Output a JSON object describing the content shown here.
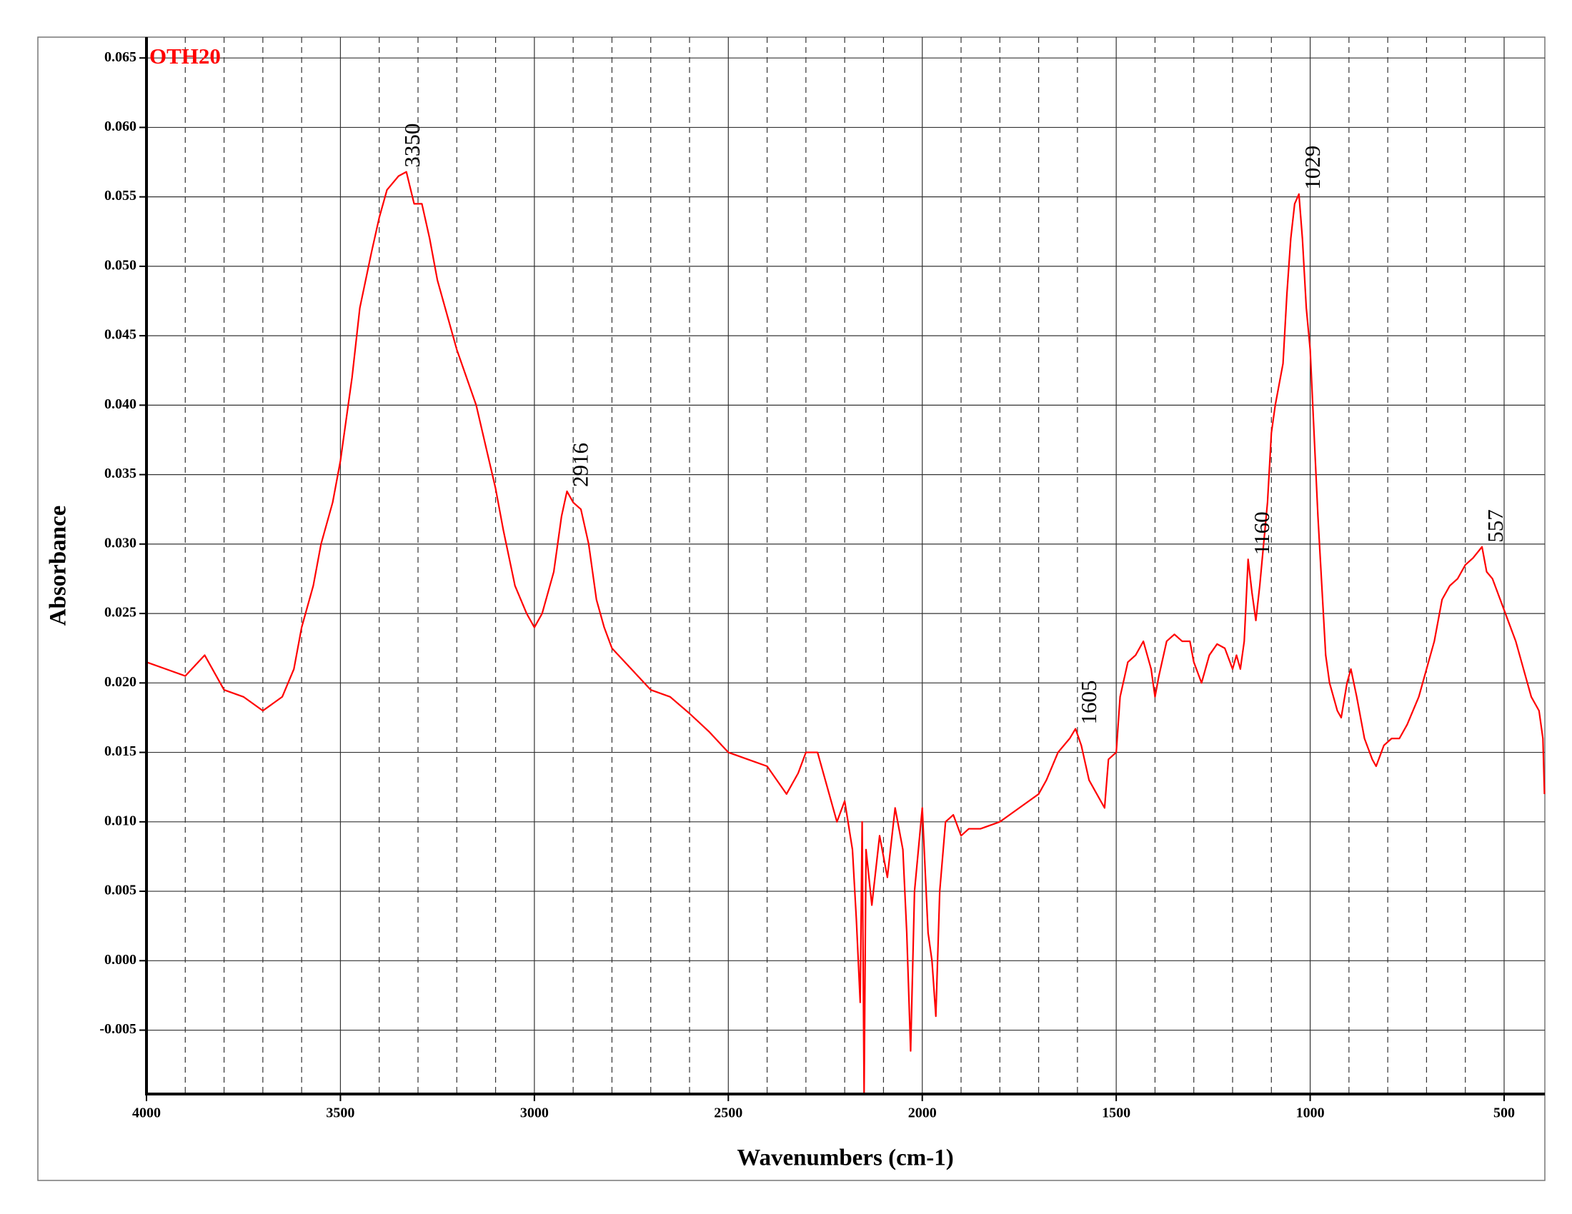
{
  "chart_data": {
    "type": "line",
    "xlabel": "Wavenumbers (cm-1)",
    "ylabel": "Absorbance",
    "xlim": [
      4000,
      395
    ],
    "ylim": [
      -0.0096,
      0.0665
    ],
    "xticks": [
      4000,
      3500,
      3000,
      2500,
      2000,
      1500,
      1000,
      500
    ],
    "xminorgrid": [
      3900,
      3800,
      3700,
      3600,
      3400,
      3300,
      3200,
      3100,
      2900,
      2800,
      2700,
      2600,
      2400,
      2300,
      2200,
      2100,
      1900,
      1800,
      1700,
      1600,
      1400,
      1300,
      1200,
      1100,
      900,
      800,
      700,
      600
    ],
    "yticks": [
      {
        "value": 0.065,
        "label": "0.065"
      },
      {
        "value": 0.06,
        "label": "0.060"
      },
      {
        "value": 0.055,
        "label": "0.055"
      },
      {
        "value": 0.05,
        "label": "0.050"
      },
      {
        "value": 0.045,
        "label": "0.045"
      },
      {
        "value": 0.04,
        "label": "0.040"
      },
      {
        "value": 0.035,
        "label": "0.035"
      },
      {
        "value": 0.03,
        "label": "0.030"
      },
      {
        "value": 0.025,
        "label": "0.025"
      },
      {
        "value": 0.02,
        "label": "0.020"
      },
      {
        "value": 0.015,
        "label": "0.015"
      },
      {
        "value": 0.01,
        "label": "0.010"
      },
      {
        "value": 0.005,
        "label": "0.005"
      },
      {
        "value": 0,
        "label": "0.000"
      },
      {
        "value": -0.005,
        "label": "-0.005"
      }
    ],
    "grid": true,
    "legend": "top-left",
    "series": [
      {
        "name": "OTH20",
        "color": "#ff0000",
        "x": [
          4000,
          3950,
          3900,
          3850,
          3800,
          3750,
          3700,
          3650,
          3620,
          3600,
          3570,
          3550,
          3520,
          3500,
          3470,
          3450,
          3420,
          3400,
          3380,
          3350,
          3330,
          3310,
          3290,
          3270,
          3250,
          3220,
          3200,
          3150,
          3100,
          3080,
          3050,
          3020,
          3000,
          2980,
          2950,
          2930,
          2916,
          2900,
          2880,
          2860,
          2840,
          2820,
          2800,
          2750,
          2700,
          2650,
          2600,
          2550,
          2500,
          2450,
          2400,
          2350,
          2320,
          2300,
          2270,
          2250,
          2220,
          2200,
          2180,
          2170,
          2160,
          2155,
          2150,
          2145,
          2130,
          2110,
          2090,
          2070,
          2050,
          2040,
          2030,
          2020,
          2000,
          1985,
          1975,
          1965,
          1955,
          1940,
          1920,
          1900,
          1880,
          1850,
          1800,
          1750,
          1700,
          1680,
          1650,
          1620,
          1605,
          1590,
          1570,
          1550,
          1530,
          1520,
          1500,
          1490,
          1470,
          1450,
          1430,
          1410,
          1400,
          1390,
          1370,
          1350,
          1330,
          1310,
          1300,
          1280,
          1260,
          1240,
          1220,
          1200,
          1190,
          1180,
          1170,
          1160,
          1150,
          1140,
          1130,
          1110,
          1100,
          1090,
          1070,
          1060,
          1050,
          1040,
          1029,
          1020,
          1010,
          1000,
          990,
          980,
          970,
          960,
          950,
          930,
          920,
          905,
          895,
          880,
          860,
          840,
          830,
          810,
          790,
          770,
          750,
          720,
          700,
          680,
          660,
          640,
          620,
          600,
          580,
          557,
          545,
          530,
          510,
          490,
          470,
          450,
          430,
          410,
          400,
          396
        ],
        "values": [
          0.0215,
          0.021,
          0.0205,
          0.022,
          0.0195,
          0.019,
          0.018,
          0.019,
          0.021,
          0.024,
          0.027,
          0.03,
          0.033,
          0.036,
          0.042,
          0.047,
          0.051,
          0.0535,
          0.0555,
          0.0565,
          0.0568,
          0.0545,
          0.0545,
          0.052,
          0.049,
          0.046,
          0.044,
          0.04,
          0.034,
          0.031,
          0.027,
          0.025,
          0.024,
          0.025,
          0.028,
          0.032,
          0.0338,
          0.033,
          0.0325,
          0.03,
          0.026,
          0.024,
          0.0225,
          0.021,
          0.0195,
          0.019,
          0.0178,
          0.0165,
          0.015,
          0.0145,
          0.014,
          0.012,
          0.0135,
          0.015,
          0.015,
          0.013,
          0.01,
          0.0115,
          0.008,
          0.003,
          -0.003,
          0.01,
          -0.0096,
          0.008,
          0.004,
          0.009,
          0.006,
          0.011,
          0.008,
          0.002,
          -0.0065,
          0.005,
          0.011,
          0.002,
          0,
          -0.004,
          0.005,
          0.01,
          0.0105,
          0.009,
          0.0095,
          0.0095,
          0.01,
          0.011,
          0.012,
          0.013,
          0.015,
          0.016,
          0.0167,
          0.0155,
          0.013,
          0.012,
          0.011,
          0.0145,
          0.015,
          0.019,
          0.0215,
          0.022,
          0.023,
          0.021,
          0.019,
          0.0205,
          0.023,
          0.0235,
          0.023,
          0.023,
          0.0215,
          0.02,
          0.022,
          0.0228,
          0.0225,
          0.021,
          0.022,
          0.021,
          0.023,
          0.0289,
          0.0265,
          0.0245,
          0.027,
          0.033,
          0.038,
          0.04,
          0.043,
          0.048,
          0.052,
          0.0545,
          0.0552,
          0.052,
          0.047,
          0.044,
          0.038,
          0.032,
          0.027,
          0.022,
          0.02,
          0.018,
          0.0175,
          0.02,
          0.021,
          0.019,
          0.016,
          0.0145,
          0.014,
          0.0155,
          0.016,
          0.016,
          0.017,
          0.019,
          0.021,
          0.023,
          0.026,
          0.027,
          0.0275,
          0.0285,
          0.029,
          0.0298,
          0.028,
          0.0275,
          0.026,
          0.0245,
          0.023,
          0.021,
          0.019,
          0.018,
          0.016,
          0.012
        ]
      }
    ],
    "annotations": [
      {
        "x": 3350,
        "y": 0.0568
      },
      {
        "x": 2916,
        "y": 0.0338
      },
      {
        "x": 1605,
        "y": 0.0167
      },
      {
        "x": 1160,
        "y": 0.0289
      },
      {
        "x": 1029,
        "y": 0.0552
      },
      {
        "x": 557,
        "y": 0.0298
      }
    ]
  }
}
